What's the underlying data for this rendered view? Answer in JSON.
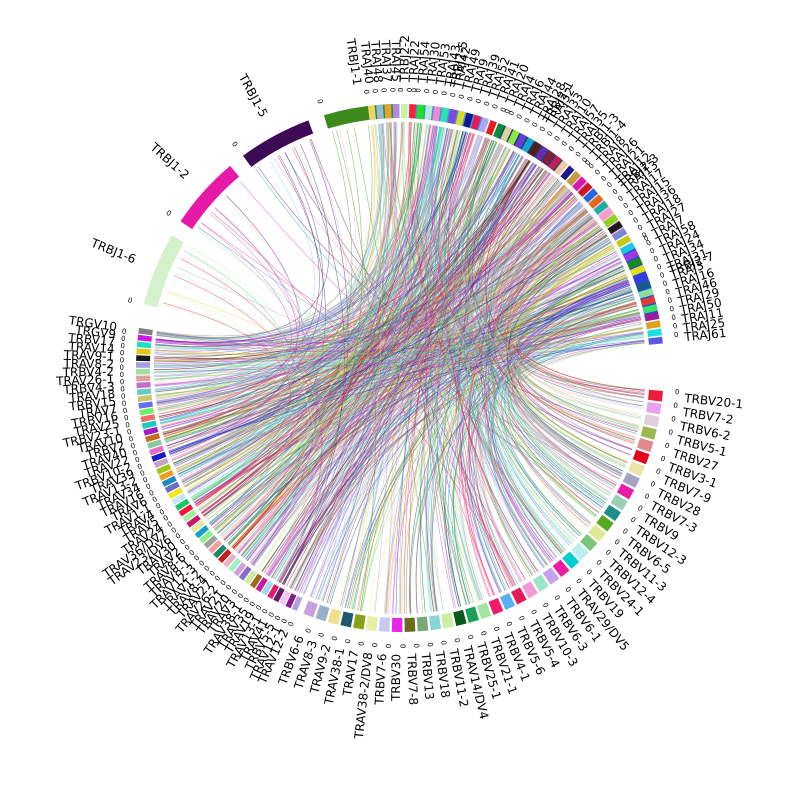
{
  "chart_data": {
    "type": "chord",
    "title": "",
    "tick_label": "0",
    "sectors": [
      {
        "group": "TRBJ",
        "start_deg": 194,
        "end_deg": 352,
        "reverse": true,
        "labels": [
          "TRBJ2-7",
          "TRBJ2-3",
          "TRBJ2-1",
          "TRBJ2-5",
          "TRBJ1-1",
          "TRBJ1-5",
          "TRBJ1-2",
          "TRBJ1-6"
        ],
        "colors": [
          "#1f4fd6",
          "#f7bde8",
          "#0a4a66",
          "#4a8ee0",
          "#3b8a1a",
          "#3d0a55",
          "#e61aa7",
          "#d4f1cc"
        ]
      },
      {
        "group": "TRAJ",
        "start_deg": 263,
        "end_deg": 355,
        "reverse": false,
        "labels": [
          "TRAJ40",
          "TRAJ48",
          "TRAJ37",
          "TRAJ45",
          "TRBJ2-2",
          "TRAJ22",
          "TRAJ54",
          "TRAJ30",
          "TRAJ53",
          "TRAJ43",
          "TRAJ42",
          "TRAJ49",
          "TRAJ9",
          "TRAJ39",
          "TRAJ52",
          "TRAJ41",
          "TRAJ20",
          "TRAJ4",
          "TRAJ6",
          "TRAJ44",
          "TRAJ28",
          "TRAJ32",
          "TRAJ33",
          "TRAJ10",
          "TRAJ57",
          "TRAJ35",
          "TRBJ1-3",
          "TRBJ1-4",
          "TRAJ8",
          "TRAJ26",
          "TRAJ21",
          "TRAJ12",
          "TRAJ13",
          "TRAJ17",
          "TRAJ15",
          "TRAJ36",
          "TRAJ18",
          "TRAJ27",
          "TRAJ7",
          "TRAJ58",
          "TRAJ24",
          "TRAJ34",
          "TRAJ31",
          "TRAJ3",
          "TRAJ16",
          "TRAJ46",
          "TRAJ29",
          "TRAJ50",
          "TRAJ11",
          "TRAJ25",
          "TRAJ61"
        ],
        "colors": [
          "#f2d36b",
          "#8fbde0",
          "#e0a23c",
          "#b28be0",
          "#c8f2a0",
          "#ff1f3c",
          "#1ee61e",
          "#b7ecd8",
          "#f28ad3",
          "#2ee0b2",
          "#7a4bd9",
          "#dcdc28",
          "#0b1b8a",
          "#e61a5a",
          "#a9a9f0",
          "#e61a1a",
          "#0f8a3a",
          "#e0d2a0",
          "#8ee64a",
          "#6b3ad6",
          "#1aa0d6",
          "#5a1a1a",
          "#6b2aa8",
          "#8a1a3a",
          "#c81a5a",
          "#f2c8a0",
          "#1a1a8a",
          "#c89a3a",
          "#d61ab0",
          "#c81a1a",
          "#1a6be0",
          "#e06b1a",
          "#1ab0a0",
          "#f0a0c8",
          "#8ad61a",
          "#1a1a1a",
          "#7a8ad6",
          "#c8c81a",
          "#1ac8e0",
          "#a03ae0",
          "#1a8a1a",
          "#e0e01a",
          "#3a3ae0",
          "#1a5a8a",
          "#8ae0a0",
          "#e03a3a",
          "#3ae06b",
          "#a01aa0",
          "#e0a01a",
          "#1ae0e0",
          "#5a5ae0"
        ]
      },
      {
        "group": "TRBV",
        "start_deg": 5,
        "end_deg": 112,
        "reverse": false,
        "labels": [
          "TRBV20-1",
          "TRBV7-2",
          "TRBV6-2",
          "TRBV5-1",
          "TRBV27",
          "TRBV3-1",
          "TRBV7-9",
          "TRBV28",
          "TRBV7-3",
          "TRBV9",
          "TRBV12-3",
          "TRBV6-5",
          "TRBV11-3",
          "TRBV12-4",
          "TRBV24-1",
          "TRBV19",
          "TRAV29/DV5",
          "TRBV6-1",
          "TRBV6-3",
          "TRBV10-3",
          "TRBV5-4",
          "TRBV5-6",
          "TRBV4-1",
          "TRBV21-1",
          "TRBV25-1",
          "TRAV14/DV4",
          "TRBV11-2",
          "TRBV18",
          "TRBV13",
          "TRBV7-8",
          "TRBV30",
          "TRBV7-6",
          "TRAV38-2/DV8",
          "TRAV17",
          "TRAV38-1",
          "TRAV9-2",
          "TRAV8-3",
          "TRBV6-6"
        ],
        "colors": [
          "#ee1c3c",
          "#e7a3ef",
          "#dfcfdc",
          "#9ab84b",
          "#e2898b",
          "#e6001e",
          "#e8e4a4",
          "#a4a4c0",
          "#e61ea6",
          "#9bd1b2",
          "#1e8f88",
          "#56a821",
          "#dde895",
          "#7ac47c",
          "#b8f0f0",
          "#00cfd0",
          "#ee1ca0",
          "#c8a0f0",
          "#9ae6c8",
          "#f09bd8",
          "#e61a5a",
          "#5ab0f0",
          "#f01a6b",
          "#a0e6a0",
          "#1aa05a",
          "#0a5a1a",
          "#c8f0a0",
          "#8ad6d6",
          "#78a878",
          "#6b6b1a",
          "#e628e6",
          "#c8c8f0",
          "#e6f0a0",
          "#8aa01a",
          "#1a5a6b",
          "#f2e090",
          "#9ab0c8",
          "#c8a0e0"
        ]
      },
      {
        "group": "TRAV",
        "start_deg": 113,
        "end_deg": 189,
        "reverse": false,
        "labels": [
          "TRAV12-2",
          "TRAV12-1",
          "TRBV5-5",
          "TRAV41",
          "TRAV13-1",
          "TRAV19",
          "TRAV35",
          "TRAV38-1",
          "TRAV3",
          "TRAV20",
          "TRAV21",
          "TRAV26-2",
          "TRAV27",
          "TRAV8-4",
          "TRAV1-2",
          "TRAV12-3",
          "TRAV8-1",
          "TRAV8-6",
          "TRAV2",
          "TRAV30",
          "TRAV23/DV6",
          "TRAV36/DV7",
          "TRAV24",
          "TRAV5",
          "TRAV4",
          "TRAV1-1",
          "TRAV6",
          "TRAV16",
          "TRAV34",
          "TRAV13-2",
          "TRAV39",
          "TRBV10-2",
          "TRAV22",
          "TRAV40",
          "TRBV2",
          "TRAV10",
          "TRBV23-1",
          "TRAV25",
          "TRBV16",
          "TRAV7",
          "TRBV15",
          "TRAV18",
          "TRBV4-3",
          "TRAV26-1",
          "TRBV4-2",
          "TRAV8-2",
          "TRAV9-1",
          "TRAV14",
          "TRBV17",
          "TRGV9",
          "TRGV10"
        ],
        "colors": [
          "#b0a0e0",
          "#8a1a8a",
          "#f0c8f0",
          "#6b1a6b",
          "#e61a6b",
          "#a0d6f0",
          "#c81aa0",
          "#a06b1a",
          "#c8f0a0",
          "#8a6bc8",
          "#d6a0d6",
          "#a0f0c8",
          "#e6b0c8",
          "#c81a1a",
          "#1a8a6b",
          "#f0a0a0",
          "#a0a0a0",
          "#8af08a",
          "#1aa0c8",
          "#e6e6a0",
          "#c81a6b",
          "#a0f0a0",
          "#f01a3a",
          "#1ac86b",
          "#c8e6f0",
          "#f0e61a",
          "#6b6bc8",
          "#1a8ac8",
          "#f0a01a",
          "#a0c81a",
          "#c8a0c8",
          "#1a1ac8",
          "#e06bc8",
          "#8ac8a0",
          "#c86b1a",
          "#a01ac8",
          "#1ac8c8",
          "#f06b6b",
          "#6bf06b",
          "#6b6bf0",
          "#c8c86b",
          "#6bc8c8",
          "#c86bc8",
          "#e0a0a0",
          "#a0e0a0",
          "#a0a0e0",
          "#1a1a1a",
          "#e0c81a",
          "#1ae0c8",
          "#c81ae0",
          "#808080"
        ]
      }
    ]
  }
}
